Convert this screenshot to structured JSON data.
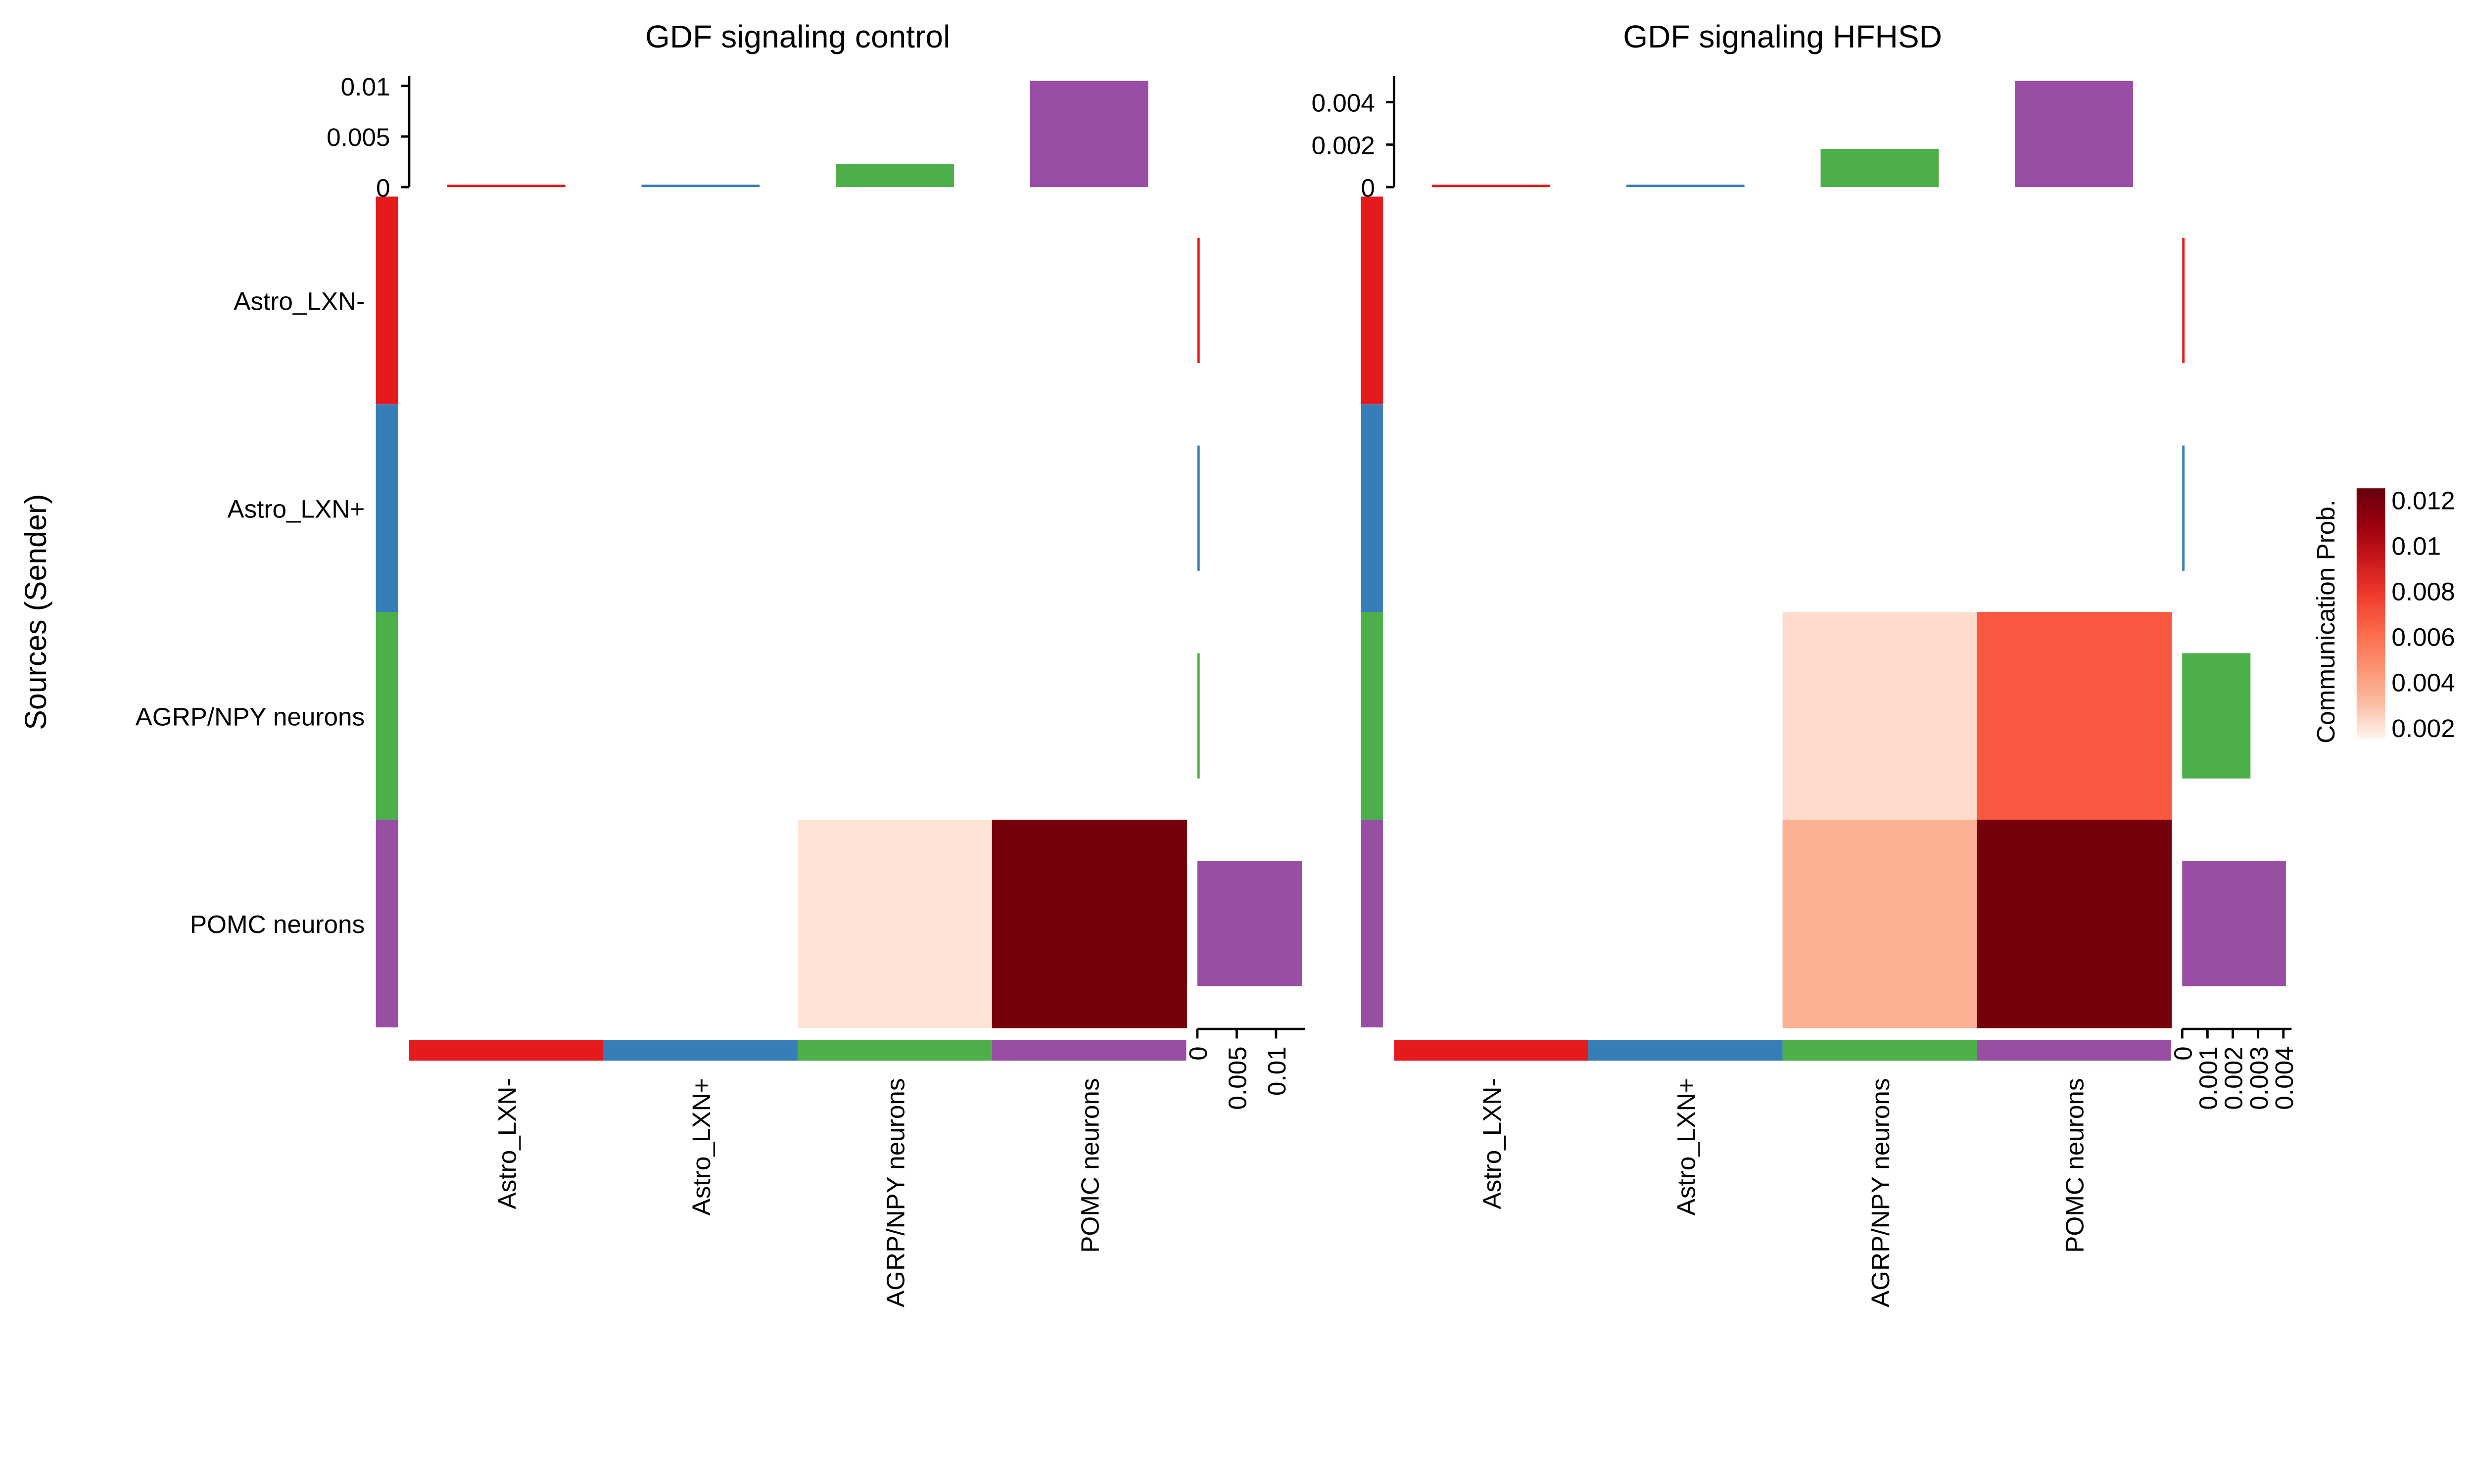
{
  "chart_data": {
    "type": "heatmap",
    "ylabel": "Sources (Sender)",
    "categories": [
      "Astro_LXN-",
      "Astro_LXN+",
      "AGRP/NPY neurons",
      "POMC neurons"
    ],
    "category_colors": [
      "#E41A1C",
      "#377EB8",
      "#4DAF4A",
      "#984EA3"
    ],
    "legend": {
      "title": "Communication Prob.",
      "ticks": [
        "0.012",
        "0.01",
        "0.008",
        "0.006",
        "0.004",
        "0.002"
      ],
      "range": [
        0.0015,
        0.0125
      ],
      "colors": [
        "#FFF5F0",
        "#FCBBA1",
        "#FC9272",
        "#FB6A4A",
        "#EF3B2C",
        "#CB181D",
        "#99000D",
        "#67000D"
      ],
      "placement": "right"
    },
    "panels": [
      {
        "title": "GDF signaling  control",
        "matrix": [
          [
            0,
            0,
            0,
            0
          ],
          [
            0,
            0,
            0,
            0
          ],
          [
            0,
            0,
            0,
            0
          ],
          [
            0,
            0,
            0.002,
            0.012
          ]
        ],
        "top_bars": [
          0.0001,
          0.0001,
          0.0023,
          0.0105
        ],
        "top_axis": {
          "range": [
            0,
            0.0105
          ],
          "ticks": [
            0,
            0.005,
            0.01
          ],
          "tick_labels": [
            "0",
            "0.005",
            "0.01"
          ]
        },
        "right_bars": [
          0.0001,
          0.0001,
          0.0001,
          0.0133
        ],
        "right_axis": {
          "range": [
            0,
            0.0133
          ],
          "ticks": [
            0,
            0.005,
            0.01
          ],
          "tick_labels": [
            "0",
            "0.005",
            "0.01"
          ]
        }
      },
      {
        "title": "GDF signaling  HFHSD",
        "matrix": [
          [
            0,
            0,
            0,
            0
          ],
          [
            0,
            0,
            0,
            0
          ],
          [
            0,
            0,
            0.0022,
            0.0068
          ],
          [
            0,
            0,
            0.0035,
            0.012
          ]
        ],
        "top_bars": [
          5e-05,
          5e-05,
          0.0018,
          0.005
        ],
        "top_axis": {
          "range": [
            0,
            0.005
          ],
          "ticks": [
            0,
            0.002,
            0.004
          ],
          "tick_labels": [
            "0",
            "0.002",
            "0.004"
          ]
        },
        "right_bars": [
          3e-05,
          3e-05,
          0.0027,
          0.0041
        ],
        "right_axis": {
          "range": [
            0,
            0.0042
          ],
          "ticks": [
            0,
            0.001,
            0.002,
            0.003,
            0.004
          ],
          "tick_labels": [
            "0",
            "0.001",
            "0.002",
            "0.003",
            "0.004"
          ]
        }
      }
    ]
  }
}
